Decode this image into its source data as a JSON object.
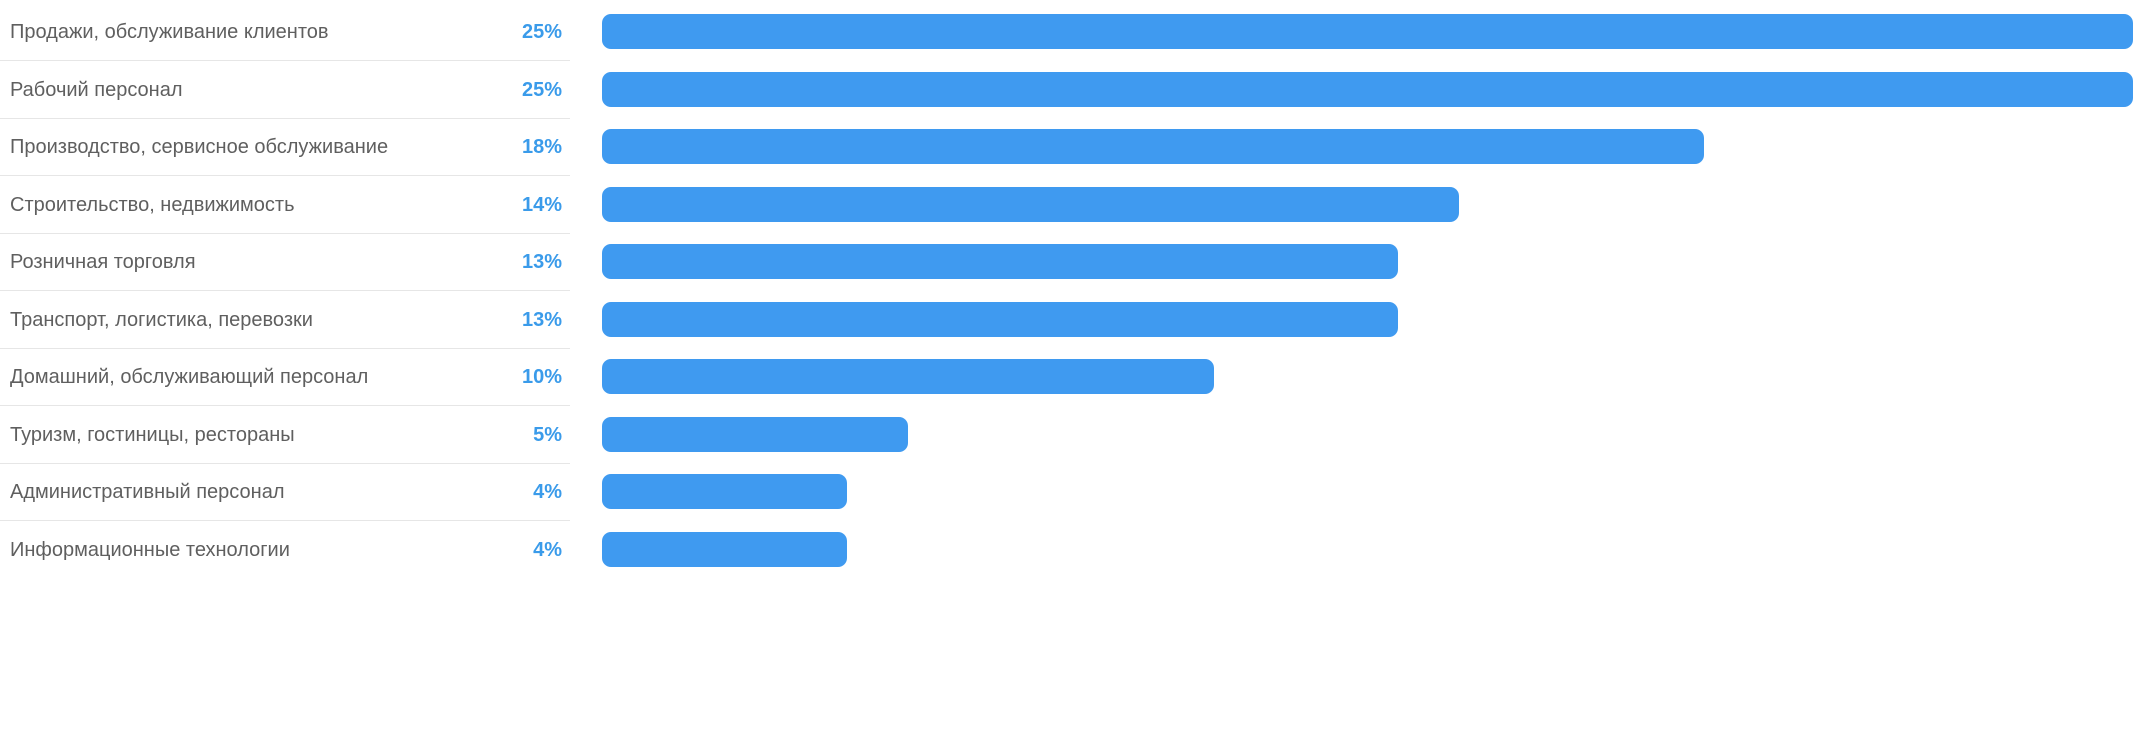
{
  "chart_data": {
    "type": "bar",
    "orientation": "horizontal",
    "bar_color": "#3f9af0",
    "value_color": "#3a9bea",
    "xlim": [
      0,
      25
    ],
    "categories": [
      "Продажи, обслуживание клиентов",
      "Рабочий персонал",
      "Производство, сервисное обслуживание",
      "Строительство, недвижимость",
      "Розничная торговля",
      "Транспорт, логистика, перевозки",
      "Домашний, обслуживающий персонал",
      "Туризм, гостиницы, рестораны",
      "Административный персонал",
      "Информационные технологии"
    ],
    "values": [
      25,
      25,
      18,
      14,
      13,
      13,
      10,
      5,
      4,
      4
    ],
    "value_labels": [
      "25%",
      "25%",
      "18%",
      "14%",
      "13%",
      "13%",
      "10%",
      "5%",
      "4%",
      "4%"
    ]
  }
}
